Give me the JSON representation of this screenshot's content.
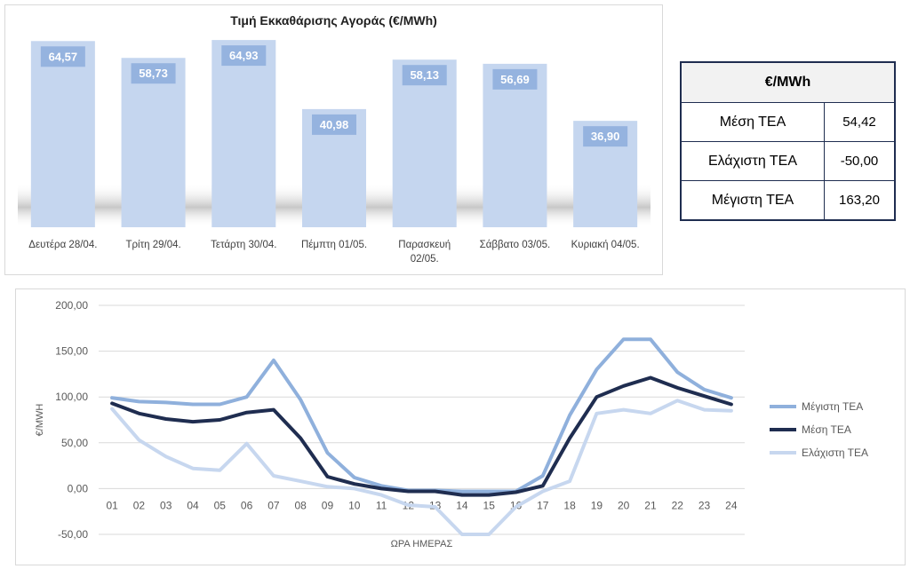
{
  "chart_data": [
    {
      "type": "bar",
      "title": "Τιμή Εκκαθάρισης Αγοράς (€/MWh)",
      "categories": [
        "Δευτέρα 28/04.",
        "Τρίτη 29/04.",
        "Τετάρτη 30/04.",
        "Πέμπτη 01/05.",
        "Παρασκευή 02/05.",
        "Σάββατο 03/05.",
        "Κυριακή 04/05."
      ],
      "values": [
        64.57,
        58.73,
        64.93,
        40.98,
        58.13,
        56.69,
        36.9
      ],
      "value_labels": [
        "64,57",
        "58,73",
        "64,93",
        "40,98",
        "58,13",
        "56,69",
        "36,90"
      ],
      "bar_color": "#c5d6ef",
      "label_bg_color": "#95b3df"
    },
    {
      "type": "line",
      "xlabel": "ΩΡΑ ΗΜΕΡΑΣ",
      "ylabel": "€/MWH",
      "x": [
        "01",
        "02",
        "03",
        "04",
        "05",
        "06",
        "07",
        "08",
        "09",
        "10",
        "11",
        "12",
        "13",
        "14",
        "15",
        "16",
        "17",
        "18",
        "19",
        "20",
        "21",
        "22",
        "23",
        "24"
      ],
      "ylim": [
        -50,
        200
      ],
      "y_ticks": [
        "-50,00",
        "0,00",
        "50,00",
        "100,00",
        "150,00",
        "200,00"
      ],
      "grid": true,
      "legend_position": "right",
      "series": [
        {
          "name": "Μέγιστη ΤΕΑ",
          "color": "#8fb0dc",
          "values": [
            99,
            95,
            94,
            92,
            92,
            100,
            140,
            97,
            39,
            12,
            3,
            -2,
            -2,
            -3,
            -3,
            -3,
            14,
            80,
            130,
            163,
            163,
            127,
            108,
            99
          ]
        },
        {
          "name": "Μέση ΤΕΑ",
          "color": "#1f2d50",
          "values": [
            93,
            82,
            76,
            73,
            75,
            83,
            86,
            55,
            13,
            5,
            0,
            -3,
            -3,
            -7,
            -7,
            -4,
            3,
            55,
            100,
            112,
            121,
            110,
            101,
            92
          ]
        },
        {
          "name": "Ελάχιστη ΤΕΑ",
          "color": "#c7d7ef",
          "values": [
            87,
            53,
            35,
            22,
            20,
            49,
            14,
            8,
            2,
            0,
            -7,
            -18,
            -20,
            -50,
            -50,
            -20,
            -3,
            8,
            82,
            86,
            82,
            96,
            86,
            85
          ]
        }
      ]
    }
  ],
  "stats_table": {
    "header": "€/MWh",
    "rows": [
      {
        "label": "Μέση ΤΕΑ",
        "value": "54,42"
      },
      {
        "label": "Ελάχιστη ΤΕΑ",
        "value": "-50,00"
      },
      {
        "label": "Μέγιστη ΤΕΑ",
        "value": "163,20"
      }
    ]
  }
}
